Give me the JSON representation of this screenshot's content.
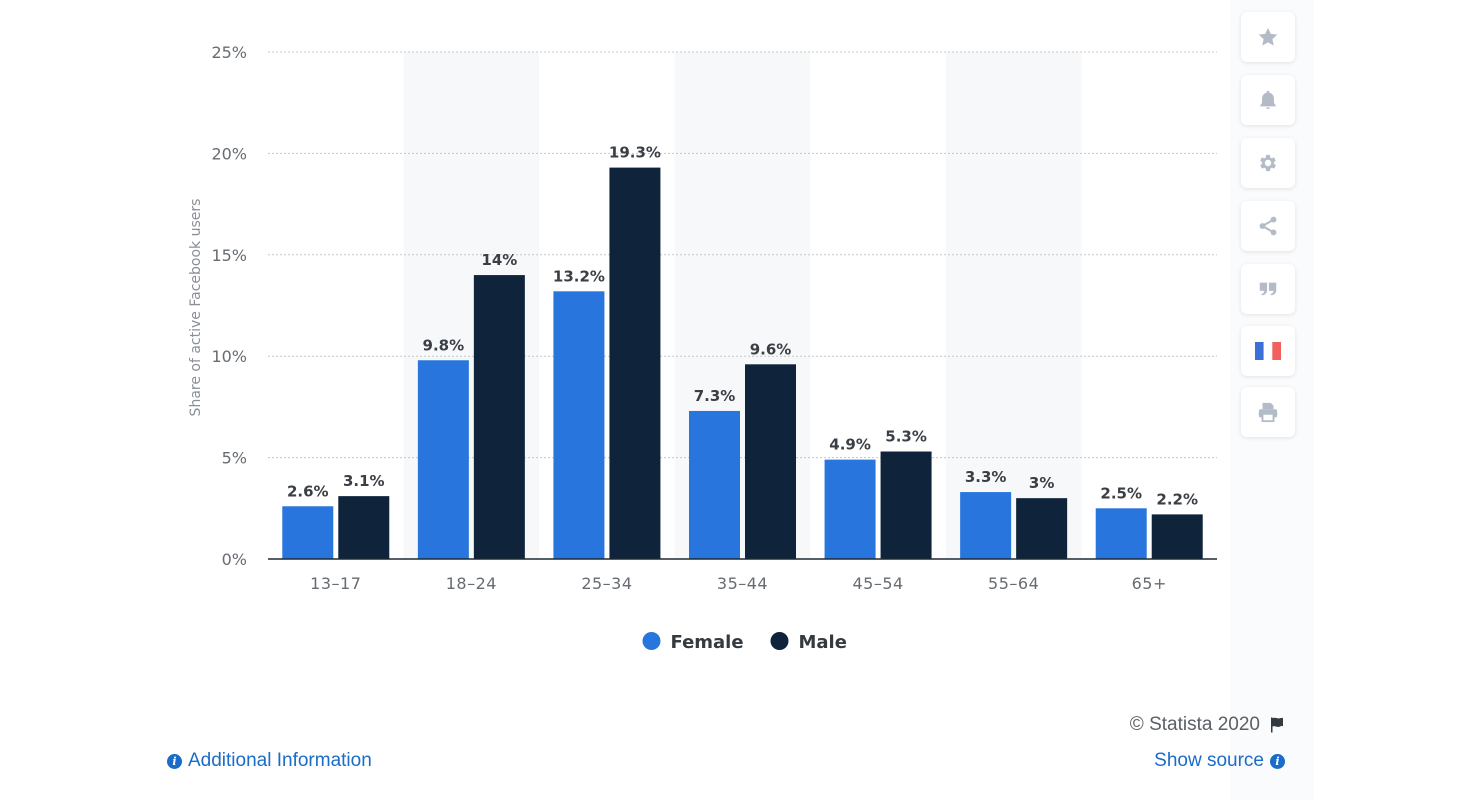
{
  "chart_data": {
    "type": "bar",
    "categories": [
      "13-17",
      "18-24",
      "25-34",
      "35-44",
      "45-54",
      "55-64",
      "65+"
    ],
    "series": [
      {
        "name": "Female",
        "color": "#2876dd",
        "values": [
          2.6,
          9.8,
          13.2,
          7.3,
          4.9,
          3.3,
          2.5
        ],
        "labels": [
          "2.6%",
          "9.8%",
          "13.2%",
          "7.3%",
          "4.9%",
          "3.3%",
          "2.5%"
        ]
      },
      {
        "name": "Male",
        "color": "#0f243b",
        "values": [
          3.1,
          14,
          19.3,
          9.6,
          5.3,
          3,
          2.2
        ],
        "labels": [
          "3.1%",
          "14%",
          "19.3%",
          "9.6%",
          "5.3%",
          "3%",
          "2.2%"
        ]
      }
    ],
    "ylabel": "Share of active Facebook users",
    "xlabel": "",
    "ylim": [
      0,
      25
    ],
    "yticks": [
      "0%",
      "5%",
      "10%",
      "15%",
      "20%",
      "25%"
    ],
    "grid": true,
    "legend_position": "bottom"
  },
  "toolbar": {
    "icons": [
      "star-icon",
      "bell-icon",
      "gear-icon",
      "share-icon",
      "quote-icon",
      "french-flag-icon",
      "print-icon"
    ]
  },
  "footer": {
    "copyright": "© Statista 2020",
    "additional_info": "Additional Information",
    "show_source": "Show source"
  }
}
